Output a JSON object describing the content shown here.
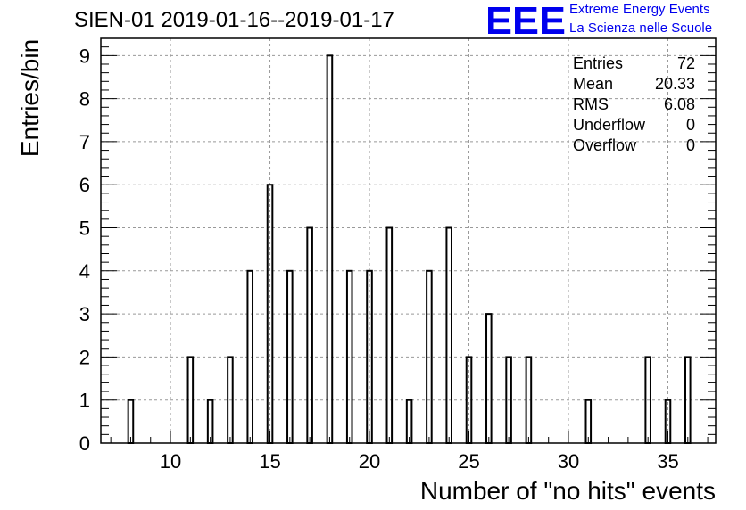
{
  "header": {
    "title": "SIEN-01 2019-01-16--2019-01-17",
    "logo_text": "EEE",
    "org_line1": "Extreme Energy Events",
    "org_line2": "La Scienza nelle Scuole"
  },
  "colors": {
    "accent": "#0000ee",
    "bar": "#000000",
    "grid": "#999999"
  },
  "stats": [
    {
      "label": "Entries",
      "value": "72"
    },
    {
      "label": "Mean",
      "value": "20.33"
    },
    {
      "label": "RMS",
      "value": "6.08"
    },
    {
      "label": "Underflow",
      "value": "0"
    },
    {
      "label": "Overflow",
      "value": "0"
    }
  ],
  "chart_data": {
    "type": "bar",
    "xlabel": "Number of \"no hits\" events",
    "ylabel": "Entries/bin",
    "xlim": [
      6.5,
      37.4
    ],
    "ylim": [
      0,
      9.4
    ],
    "xticks": [
      10,
      15,
      20,
      25,
      30,
      35
    ],
    "yticks": [
      0,
      1,
      2,
      3,
      4,
      5,
      6,
      7,
      8,
      9
    ],
    "bin_width": 0.25,
    "grid": true,
    "legend": "top-right",
    "x": [
      8,
      11,
      12,
      13,
      14,
      15,
      16,
      17,
      18,
      19,
      20,
      21,
      22,
      23,
      24,
      25,
      26,
      27,
      28,
      31,
      34,
      35,
      36
    ],
    "values": [
      1,
      2,
      1,
      2,
      4,
      6,
      4,
      5,
      9,
      4,
      4,
      5,
      1,
      4,
      5,
      2,
      3,
      2,
      2,
      1,
      2,
      1,
      2
    ]
  }
}
